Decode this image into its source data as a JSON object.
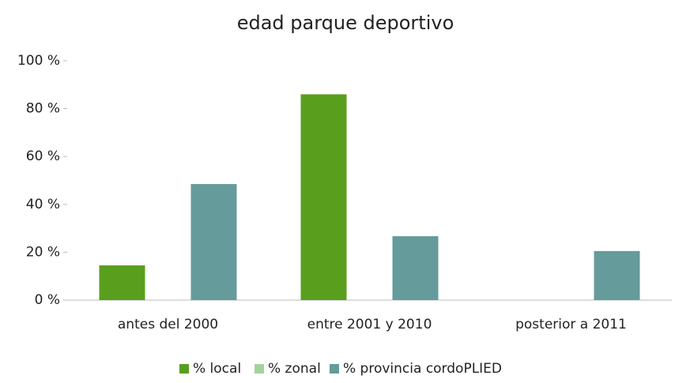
{
  "chart_data": {
    "type": "bar",
    "title": "edad parque deportivo",
    "categories": [
      "antes del 2000",
      "entre 2001 y 2010",
      "posterior a 2011"
    ],
    "series": [
      {
        "name": "% local",
        "color": "#5a9e1e",
        "values": [
          14.5,
          86,
          0
        ]
      },
      {
        "name": "% zonal",
        "color": "#a3d39c",
        "values": [
          0,
          0,
          0
        ]
      },
      {
        "name": "% provincia cordoPLIED",
        "color": "#659b9b",
        "values": [
          48.5,
          26.7,
          20.5
        ]
      }
    ],
    "ylim": [
      0,
      100
    ],
    "yticks": [
      {
        "value": 0,
        "label": "0 %"
      },
      {
        "value": 20,
        "label": "20 %"
      },
      {
        "value": 40,
        "label": "40 %"
      },
      {
        "value": 60,
        "label": "60 %"
      },
      {
        "value": 80,
        "label": "80 %"
      },
      {
        "value": 100,
        "label": "100 %"
      }
    ],
    "grid": false,
    "legend": "bottom"
  }
}
